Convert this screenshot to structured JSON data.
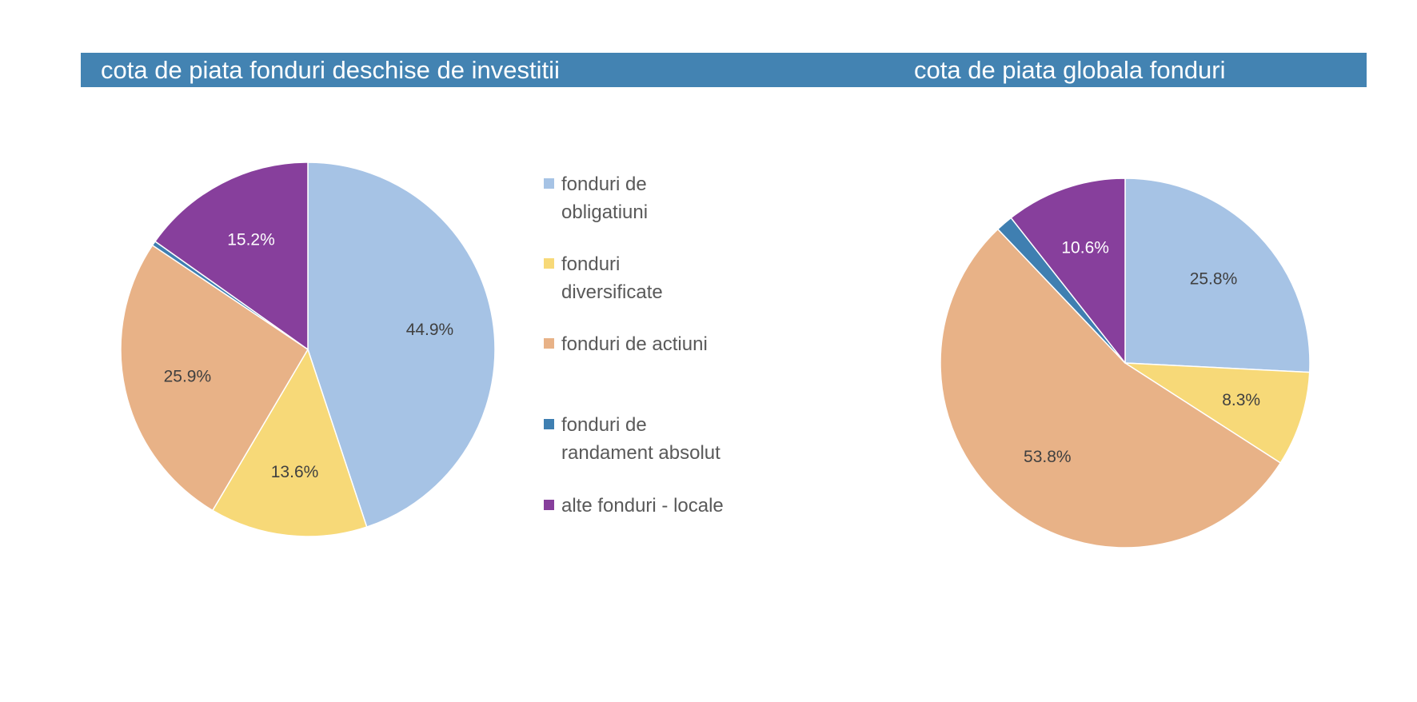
{
  "colors": {
    "header": "#4383b2",
    "title_text": "#ffffff",
    "legend_text": "#595959",
    "label_dark": "#404040",
    "label_light": "#ffffff",
    "slice_border": "#ffffff"
  },
  "legend": [
    {
      "label": "fonduri de\nobligatiuni",
      "color": "#a6c3e5"
    },
    {
      "label": "fonduri\ndiversificate",
      "color": "#f7d978"
    },
    {
      "label": "fonduri de actiuni",
      "color": "#e8b287"
    },
    {
      "label": "fonduri de\nrandament absolut",
      "color": "#3f7fb1"
    },
    {
      "label": "alte fonduri - locale",
      "color": "#873f9c"
    }
  ],
  "chart_data": [
    {
      "type": "pie",
      "title": "cota de piata fonduri deschise de investitii",
      "legend_position": "right",
      "categories": [
        "fonduri de obligatiuni",
        "fonduri diversificate",
        "fonduri de actiuni",
        "fonduri de randament absolut",
        "alte fonduri - locale"
      ],
      "values": [
        44.9,
        13.6,
        25.9,
        0.4,
        15.2
      ],
      "labels": [
        "44.9%",
        "13.6%",
        "25.9%",
        "",
        "15.2%"
      ],
      "colors": [
        "#a6c3e5",
        "#f7d978",
        "#e8b287",
        "#3f7fb1",
        "#873f9c"
      ],
      "label_colors": [
        "#404040",
        "#404040",
        "#404040",
        "#404040",
        "#ffffff"
      ]
    },
    {
      "type": "pie",
      "title": "cota de piata globala fonduri",
      "categories": [
        "fonduri de obligatiuni",
        "fonduri diversificate",
        "fonduri de actiuni",
        "fonduri de randament absolut",
        "alte fonduri - locale"
      ],
      "values": [
        25.8,
        8.3,
        53.8,
        1.5,
        10.6
      ],
      "labels": [
        "25.8%",
        "8.3%",
        "53.8%",
        "",
        "10.6%"
      ],
      "colors": [
        "#a6c3e5",
        "#f7d978",
        "#e8b287",
        "#3f7fb1",
        "#873f9c"
      ],
      "label_colors": [
        "#404040",
        "#404040",
        "#404040",
        "#404040",
        "#ffffff"
      ]
    }
  ]
}
